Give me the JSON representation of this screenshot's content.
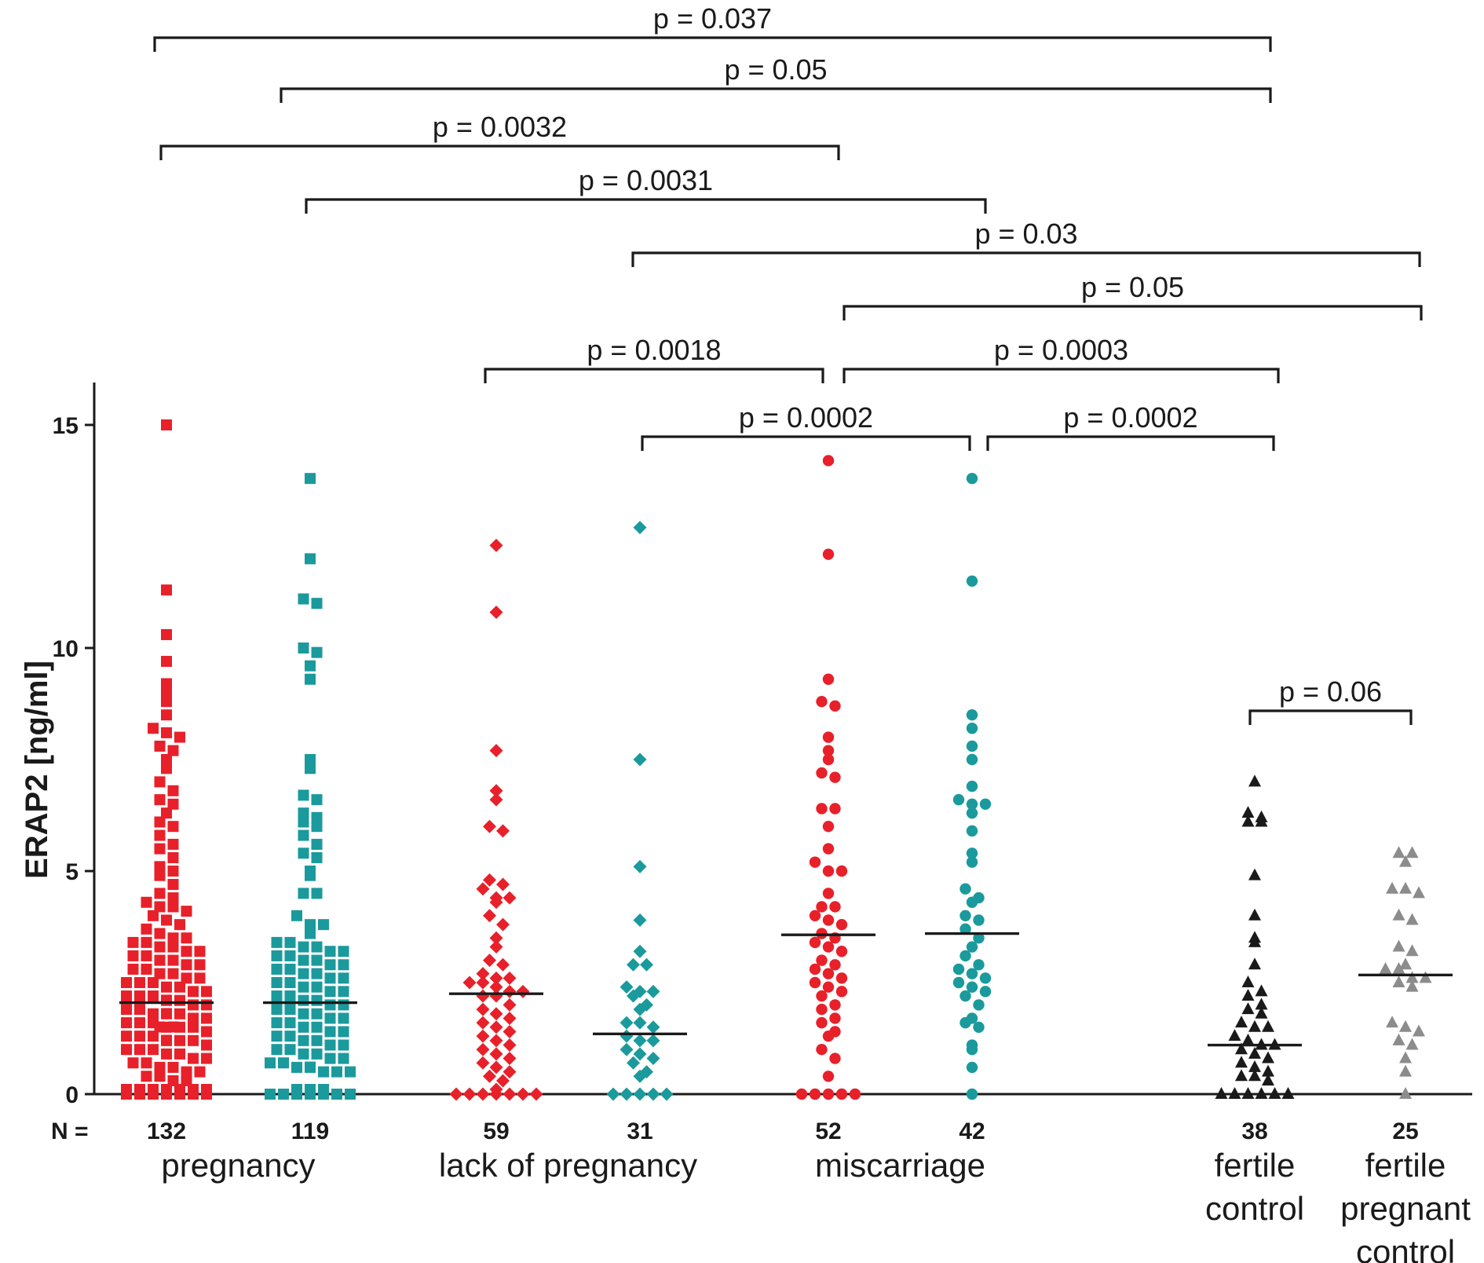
{
  "chart_data": {
    "type": "scatter",
    "title": "",
    "ylabel": "ERAP2 [ng/ml]",
    "ylim": [
      0,
      16
    ],
    "yticks": [
      0,
      5,
      10,
      15
    ],
    "n_prefix": "N =",
    "group_labels": [
      {
        "lines": [
          "pregnancy"
        ],
        "span": [
          0,
          1
        ]
      },
      {
        "lines": [
          "lack of pregnancy"
        ],
        "span": [
          2,
          3
        ]
      },
      {
        "lines": [
          "miscarriage"
        ],
        "span": [
          4,
          5
        ]
      },
      {
        "lines": [
          "fertile",
          "control"
        ],
        "span": [
          6,
          6
        ]
      },
      {
        "lines": [
          "fertile",
          "pregnant",
          "control"
        ],
        "span": [
          7,
          7
        ]
      }
    ],
    "series": [
      {
        "n": "132",
        "color": "#e8202a",
        "marker": "square",
        "median": 2.05,
        "values": [
          15.0,
          11.3,
          10.3,
          9.7,
          9.2,
          9.0,
          8.8,
          8.5,
          8.2,
          8.1,
          8.0,
          7.8,
          7.7,
          7.5,
          7.3,
          7.0,
          6.8,
          6.6,
          6.5,
          6.3,
          6.1,
          6.0,
          5.8,
          5.6,
          5.5,
          5.3,
          5.1,
          5.0,
          4.9,
          4.7,
          4.5,
          4.4,
          4.3,
          4.2,
          4.2,
          4.1,
          4.0,
          3.9,
          3.8,
          3.7,
          3.6,
          3.5,
          3.5,
          3.4,
          3.4,
          3.3,
          3.3,
          3.2,
          3.2,
          3.1,
          3.1,
          3.0,
          3.0,
          2.9,
          2.9,
          2.8,
          2.8,
          2.7,
          2.7,
          2.6,
          2.6,
          2.5,
          2.5,
          2.5,
          2.4,
          2.4,
          2.3,
          2.3,
          2.2,
          2.2,
          2.2,
          2.1,
          2.1,
          2.0,
          2.0,
          2.0,
          1.9,
          1.9,
          1.8,
          1.8,
          1.8,
          1.7,
          1.7,
          1.7,
          1.6,
          1.6,
          1.6,
          1.5,
          1.5,
          1.5,
          1.4,
          1.4,
          1.4,
          1.3,
          1.3,
          1.3,
          1.2,
          1.2,
          1.2,
          1.1,
          1.1,
          1.0,
          1.0,
          1.0,
          0.9,
          0.9,
          0.8,
          0.8,
          0.7,
          0.7,
          0.6,
          0.6,
          0.5,
          0.5,
          0.4,
          0.4,
          0.3,
          0.3,
          0,
          0,
          0,
          0,
          0,
          0,
          0,
          0,
          0,
          0,
          0,
          0,
          0,
          0
        ]
      },
      {
        "n": "119",
        "color": "#1a9a9c",
        "marker": "square",
        "median": 2.05,
        "values": [
          13.8,
          12.0,
          11.1,
          11.0,
          10.0,
          9.9,
          9.6,
          9.3,
          7.5,
          7.3,
          6.7,
          6.6,
          6.3,
          6.2,
          6.1,
          6.0,
          5.8,
          5.6,
          5.4,
          5.3,
          5.0,
          4.9,
          4.5,
          4.5,
          4.0,
          3.8,
          3.8,
          3.6,
          3.4,
          3.4,
          3.3,
          3.3,
          3.2,
          3.2,
          3.1,
          3.1,
          3.0,
          3.0,
          2.9,
          2.9,
          2.8,
          2.8,
          2.7,
          2.7,
          2.6,
          2.6,
          2.5,
          2.5,
          2.4,
          2.4,
          2.3,
          2.3,
          2.2,
          2.2,
          2.1,
          2.1,
          2.0,
          2.0,
          1.9,
          1.9,
          1.8,
          1.8,
          1.7,
          1.7,
          1.6,
          1.6,
          1.5,
          1.5,
          1.4,
          1.4,
          1.3,
          1.3,
          1.2,
          1.2,
          1.1,
          1.1,
          1.0,
          1.0,
          0.9,
          0.9,
          0.8,
          0.8,
          0.7,
          0.7,
          0.6,
          0.6,
          0.5,
          0.5,
          0.5,
          0.5,
          0,
          0,
          0,
          0,
          0,
          0,
          0,
          0,
          0,
          0
        ]
      },
      {
        "n": "59",
        "color": "#e8202a",
        "marker": "diamond",
        "median": 2.25,
        "values": [
          12.3,
          10.8,
          7.7,
          6.8,
          6.6,
          6.0,
          5.9,
          4.8,
          4.7,
          4.6,
          4.4,
          4.4,
          4.3,
          4.0,
          3.8,
          3.5,
          3.3,
          3.0,
          2.9,
          2.7,
          2.6,
          2.6,
          2.5,
          2.5,
          2.4,
          2.3,
          2.3,
          2.2,
          2.2,
          2.0,
          1.9,
          1.8,
          1.7,
          1.6,
          1.5,
          1.4,
          1.3,
          1.2,
          1.1,
          1.0,
          0.9,
          0.8,
          0.7,
          0.6,
          0.5,
          0.4,
          0.3,
          0,
          0,
          0,
          0,
          0,
          0,
          0,
          0
        ]
      },
      {
        "n": "31",
        "color": "#1a9a9c",
        "marker": "diamond",
        "median": 1.35,
        "values": [
          12.7,
          7.5,
          5.1,
          3.9,
          3.2,
          2.9,
          2.9,
          2.4,
          2.3,
          2.3,
          2.2,
          2.0,
          1.9,
          1.6,
          1.6,
          1.5,
          1.3,
          1.2,
          1.2,
          1.0,
          0.9,
          0.8,
          0.7,
          0.5,
          0.4,
          0,
          0,
          0,
          0,
          0
        ]
      },
      {
        "n": "52",
        "color": "#e8202a",
        "marker": "circle",
        "median": 3.57,
        "values": [
          14.2,
          12.1,
          9.3,
          8.8,
          8.7,
          8.0,
          7.7,
          7.5,
          7.2,
          7.1,
          6.4,
          6.4,
          6.0,
          5.5,
          5.2,
          5.0,
          5.0,
          4.5,
          4.2,
          4.2,
          4.0,
          3.9,
          3.8,
          3.6,
          3.5,
          3.4,
          3.3,
          3.2,
          3.0,
          2.9,
          2.8,
          2.7,
          2.6,
          2.5,
          2.4,
          2.3,
          2.2,
          2.0,
          1.9,
          1.7,
          1.6,
          1.4,
          1.3,
          1.0,
          0.8,
          0.4,
          0,
          0,
          0,
          0,
          0
        ]
      },
      {
        "n": "42",
        "color": "#1a9a9c",
        "marker": "circle",
        "median": 3.6,
        "values": [
          13.8,
          11.5,
          8.5,
          8.2,
          7.8,
          7.5,
          6.9,
          6.6,
          6.5,
          6.5,
          6.3,
          5.9,
          5.4,
          5.2,
          4.6,
          4.4,
          4.3,
          4.0,
          3.9,
          3.7,
          3.5,
          3.3,
          3.1,
          2.9,
          2.8,
          2.7,
          2.6,
          2.5,
          2.4,
          2.3,
          2.2,
          2.0,
          1.7,
          1.6,
          1.5,
          1.1,
          1.0,
          0.6,
          0
        ]
      },
      {
        "n": "38",
        "color": "#1a1a1a",
        "marker": "triangle",
        "median": 1.1,
        "values": [
          7.0,
          6.3,
          6.2,
          6.1,
          6.1,
          4.9,
          4.0,
          3.5,
          3.4,
          2.9,
          2.5,
          2.3,
          2.2,
          2.0,
          1.9,
          1.8,
          1.6,
          1.5,
          1.5,
          1.3,
          1.2,
          1.1,
          1.1,
          1.0,
          0.9,
          0.8,
          0.7,
          0.6,
          0.5,
          0.4,
          0.4,
          0.3,
          0,
          0,
          0,
          0,
          0,
          0
        ]
      },
      {
        "n": "25",
        "color": "#8c8c8c",
        "marker": "triangle",
        "median": 2.67,
        "values": [
          5.4,
          5.4,
          5.2,
          4.6,
          4.6,
          4.5,
          4.0,
          3.9,
          3.3,
          3.2,
          2.9,
          2.8,
          2.8,
          2.6,
          2.6,
          2.5,
          2.4,
          1.6,
          1.5,
          1.4,
          1.2,
          1.1,
          0.8,
          0.5,
          0
        ]
      }
    ],
    "comparisons": [
      {
        "a": 0,
        "b": 6,
        "label": "p = 0.037"
      },
      {
        "a": 1,
        "b": 6,
        "label": "p = 0.05"
      },
      {
        "a": 0,
        "b": 4,
        "label": "p = 0.0032"
      },
      {
        "a": 1,
        "b": 5,
        "label": "p = 0.0031"
      },
      {
        "a": 3,
        "b": 7,
        "label": "p = 0.03"
      },
      {
        "a": 4,
        "b": 7,
        "label": "p = 0.05"
      },
      {
        "a": 2,
        "b": 4,
        "label": "p = 0.0018"
      },
      {
        "a": 4,
        "b": 6,
        "label": "p = 0.0003"
      },
      {
        "a": 3,
        "b": 5,
        "label": "p = 0.0002"
      },
      {
        "a": 5,
        "b": 6,
        "label": "p = 0.0002"
      },
      {
        "a": 6,
        "b": 7,
        "label": "p = 0.06"
      }
    ]
  }
}
